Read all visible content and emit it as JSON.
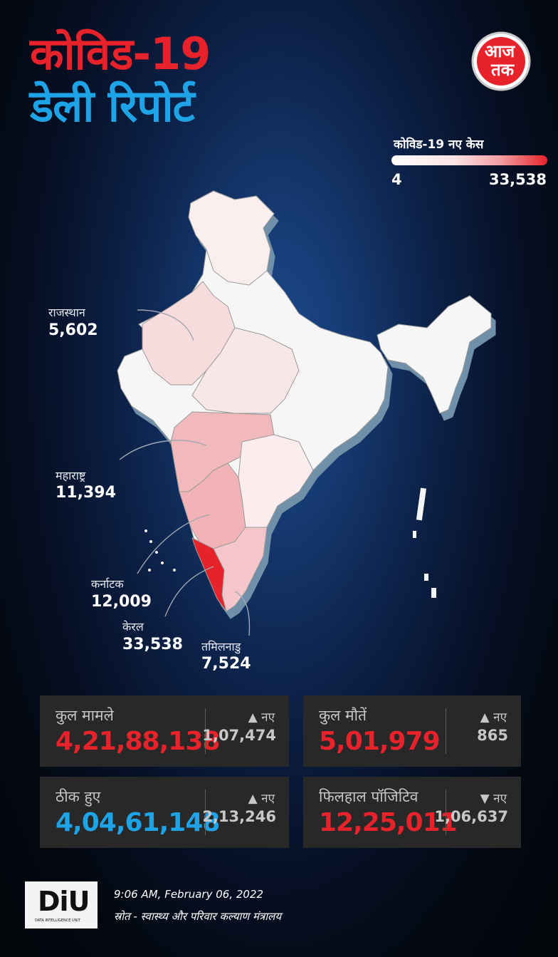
{
  "header": {
    "title_line1": "कोविड-19",
    "title_line2": "डेली रिपोर्ट",
    "logo_text_top": "आज",
    "logo_text_bottom": "तक"
  },
  "legend": {
    "title": "कोविड-19 नए केस",
    "min": "4",
    "max": "33,538",
    "color_low": "#ffffff",
    "color_high": "#e8222a"
  },
  "map_labels": [
    {
      "name": "राजस्थान",
      "value": "5,602"
    },
    {
      "name": "महाराष्ट्र",
      "value": "11,394"
    },
    {
      "name": "कर्नाटक",
      "value": "12,009"
    },
    {
      "name": "केरल",
      "value": "33,538"
    },
    {
      "name": "तमिलनाडु",
      "value": "7,524"
    }
  ],
  "stats": [
    {
      "label": "कुल मामले",
      "value": "4,21,88,138",
      "new_label": "नए",
      "new_value": "1,07,474",
      "trend": "up",
      "color": "#e8222a"
    },
    {
      "label": "कुल मौतें",
      "value": "5,01,979",
      "new_label": "नए",
      "new_value": "865",
      "trend": "up",
      "color": "#e8222a"
    },
    {
      "label": "ठीक हुए",
      "value": "4,04,61,148",
      "new_label": "नए",
      "new_value": "2,13,246",
      "trend": "up",
      "color": "#1ea3e6"
    },
    {
      "label": "फिलहाल पॉजिटिव",
      "value": "12,25,011",
      "new_label": "नए",
      "new_value": "1,06,637",
      "trend": "down",
      "color": "#e8222a"
    }
  ],
  "footer": {
    "logo_text": "DiU",
    "logo_subtext": "DATA INTELLIGENCE UNIT",
    "timestamp": "9:06 AM, February 06, 2022",
    "source": "स्रोत - स्वास्थ्य और परिवार कल्याण मंत्रालय"
  }
}
